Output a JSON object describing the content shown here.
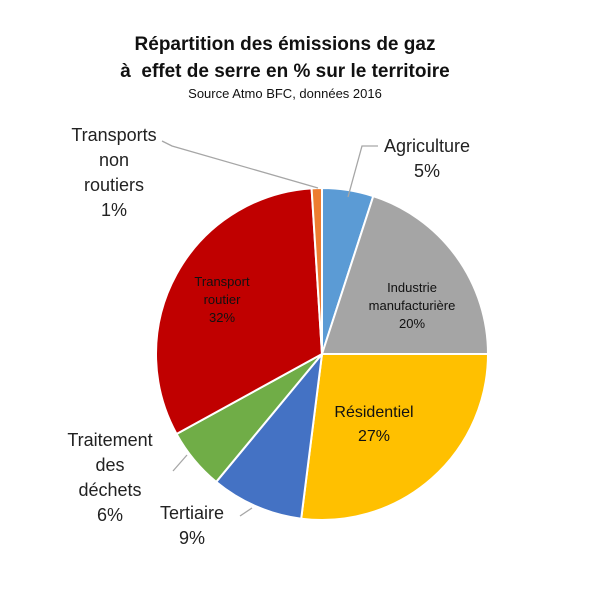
{
  "chart_data": {
    "type": "pie",
    "title_line1": "Répartition des émissions de gaz",
    "title_line2": "à  effet de serre en % sur le territoire",
    "subtitle": "Source Atmo BFC, données 2016",
    "slices": [
      {
        "key": "agriculture",
        "label_lines": [
          "Agriculture"
        ],
        "value": 5,
        "value_label": "5%",
        "color": "#5b9bd5",
        "label_color": "#222222"
      },
      {
        "key": "industrie",
        "label_lines": [
          "Industrie",
          "manufacturière"
        ],
        "value": 20,
        "value_label": "20%",
        "color": "#a5a5a5",
        "label_color": "#111111"
      },
      {
        "key": "residentiel",
        "label_lines": [
          "Résidentiel"
        ],
        "value": 27,
        "value_label": "27%",
        "color": "#ffc000",
        "label_color": "#111111"
      },
      {
        "key": "tertiaire",
        "label_lines": [
          "Tertiaire"
        ],
        "value": 9,
        "value_label": "9%",
        "color": "#4472c4",
        "label_color": "#222222"
      },
      {
        "key": "dechets",
        "label_lines": [
          "Traitement",
          "des",
          "déchets"
        ],
        "value": 6,
        "value_label": "6%",
        "color": "#70ad47",
        "label_color": "#222222"
      },
      {
        "key": "transport_routier",
        "label_lines": [
          "Transport",
          "routier"
        ],
        "value": 32,
        "value_label": "32%",
        "color": "#c00000",
        "label_color": "#111111"
      },
      {
        "key": "transports_non_routiers",
        "label_lines": [
          "Transports",
          "non",
          "routiers"
        ],
        "value": 1,
        "value_label": "1%",
        "color": "#ed7d31",
        "label_color": "#222222"
      }
    ]
  }
}
